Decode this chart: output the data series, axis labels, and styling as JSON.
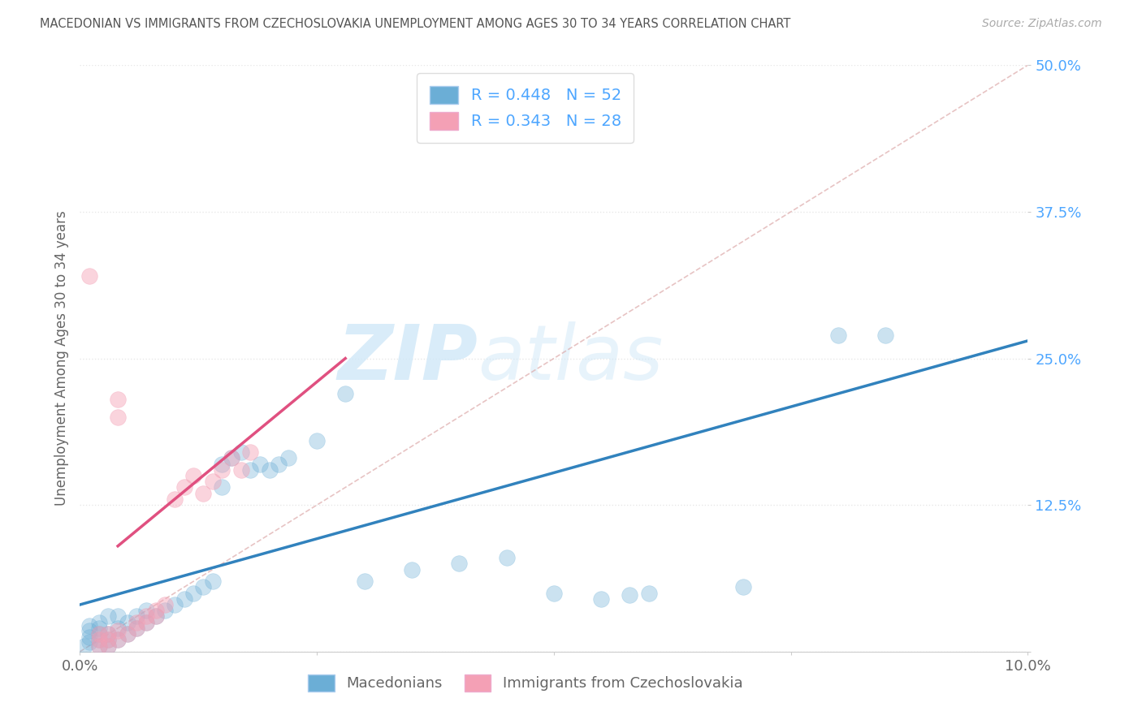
{
  "title": "MACEDONIAN VS IMMIGRANTS FROM CZECHOSLOVAKIA UNEMPLOYMENT AMONG AGES 30 TO 34 YEARS CORRELATION CHART",
  "source": "Source: ZipAtlas.com",
  "ylabel": "Unemployment Among Ages 30 to 34 years",
  "xlim": [
    0.0,
    0.1
  ],
  "ylim": [
    0.0,
    0.5
  ],
  "xticks": [
    0.0,
    0.025,
    0.05,
    0.075,
    0.1
  ],
  "xticklabels": [
    "0.0%",
    "",
    "",
    "",
    "10.0%"
  ],
  "yticks": [
    0.0,
    0.125,
    0.25,
    0.375,
    0.5
  ],
  "yticklabels": [
    "",
    "12.5%",
    "25.0%",
    "37.5%",
    "50.0%"
  ],
  "blue_R": 0.448,
  "blue_N": 52,
  "pink_R": 0.343,
  "pink_N": 28,
  "blue_color": "#6BAED6",
  "pink_color": "#F4A0B5",
  "ref_line_color": "#F4A0B5",
  "blue_line_color": "#3182BD",
  "pink_line_color": "#E05080",
  "blue_scatter": [
    [
      0.0005,
      0.005
    ],
    [
      0.001,
      0.008
    ],
    [
      0.001,
      0.012
    ],
    [
      0.001,
      0.018
    ],
    [
      0.001,
      0.022
    ],
    [
      0.002,
      0.005
    ],
    [
      0.002,
      0.01
    ],
    [
      0.002,
      0.015
    ],
    [
      0.002,
      0.02
    ],
    [
      0.002,
      0.025
    ],
    [
      0.003,
      0.005
    ],
    [
      0.003,
      0.01
    ],
    [
      0.003,
      0.015
    ],
    [
      0.003,
      0.03
    ],
    [
      0.004,
      0.01
    ],
    [
      0.004,
      0.02
    ],
    [
      0.004,
      0.03
    ],
    [
      0.005,
      0.015
    ],
    [
      0.005,
      0.025
    ],
    [
      0.006,
      0.02
    ],
    [
      0.006,
      0.03
    ],
    [
      0.007,
      0.025
    ],
    [
      0.007,
      0.035
    ],
    [
      0.008,
      0.03
    ],
    [
      0.009,
      0.035
    ],
    [
      0.01,
      0.04
    ],
    [
      0.011,
      0.045
    ],
    [
      0.012,
      0.05
    ],
    [
      0.013,
      0.055
    ],
    [
      0.014,
      0.06
    ],
    [
      0.015,
      0.16
    ],
    [
      0.016,
      0.165
    ],
    [
      0.017,
      0.17
    ],
    [
      0.018,
      0.155
    ],
    [
      0.019,
      0.16
    ],
    [
      0.02,
      0.155
    ],
    [
      0.021,
      0.16
    ],
    [
      0.022,
      0.165
    ],
    [
      0.015,
      0.14
    ],
    [
      0.025,
      0.18
    ],
    [
      0.028,
      0.22
    ],
    [
      0.03,
      0.06
    ],
    [
      0.035,
      0.07
    ],
    [
      0.04,
      0.075
    ],
    [
      0.045,
      0.08
    ],
    [
      0.05,
      0.05
    ],
    [
      0.055,
      0.045
    ],
    [
      0.058,
      0.048
    ],
    [
      0.06,
      0.05
    ],
    [
      0.07,
      0.055
    ],
    [
      0.08,
      0.27
    ],
    [
      0.085,
      0.27
    ]
  ],
  "pink_scatter": [
    [
      0.001,
      0.32
    ],
    [
      0.002,
      0.005
    ],
    [
      0.002,
      0.01
    ],
    [
      0.002,
      0.015
    ],
    [
      0.003,
      0.005
    ],
    [
      0.003,
      0.01
    ],
    [
      0.003,
      0.015
    ],
    [
      0.004,
      0.01
    ],
    [
      0.004,
      0.018
    ],
    [
      0.004,
      0.2
    ],
    [
      0.004,
      0.215
    ],
    [
      0.005,
      0.015
    ],
    [
      0.006,
      0.02
    ],
    [
      0.006,
      0.025
    ],
    [
      0.007,
      0.025
    ],
    [
      0.007,
      0.03
    ],
    [
      0.008,
      0.03
    ],
    [
      0.008,
      0.035
    ],
    [
      0.009,
      0.04
    ],
    [
      0.01,
      0.13
    ],
    [
      0.011,
      0.14
    ],
    [
      0.012,
      0.15
    ],
    [
      0.013,
      0.135
    ],
    [
      0.014,
      0.145
    ],
    [
      0.015,
      0.155
    ],
    [
      0.016,
      0.165
    ],
    [
      0.017,
      0.155
    ],
    [
      0.018,
      0.17
    ]
  ],
  "watermark_zip": "ZIP",
  "watermark_atlas": "atlas",
  "background_color": "#ffffff",
  "grid_color": "#e8e8e8"
}
